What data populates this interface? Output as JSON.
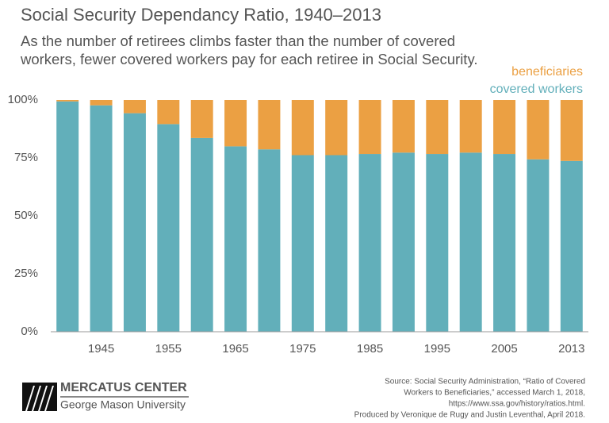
{
  "chart_data": {
    "type": "stacked_bar",
    "title": "Social Security Dependancy Ratio, 1940–2013",
    "subtitle": [
      "As the number of retirees climbs faster than the number of covered",
      "workers, fewer covered workers pay for each retiree in Social Security."
    ],
    "categories": [
      null,
      "1945",
      null,
      "1955",
      null,
      "1965",
      null,
      "1975",
      null,
      "1985",
      null,
      "1995",
      null,
      "2005",
      null,
      "2013"
    ],
    "series": [
      {
        "name": "covered workers",
        "color": "#62afba",
        "values": [
          99.4,
          97.7,
          94.3,
          89.6,
          83.6,
          80.0,
          78.7,
          76.2,
          76.2,
          76.7,
          77.3,
          76.7,
          77.3,
          76.7,
          74.4,
          73.7
        ]
      },
      {
        "name": "beneficiaries",
        "color": "#eba043",
        "values": [
          0.6,
          2.3,
          5.7,
          10.4,
          16.4,
          20.0,
          21.3,
          23.8,
          23.8,
          23.3,
          22.7,
          23.3,
          22.7,
          23.3,
          25.6,
          26.3
        ]
      }
    ],
    "ylim": [
      0,
      100
    ],
    "yticks": [
      {
        "value": 0,
        "label": "0%"
      },
      {
        "value": 25,
        "label": "25%"
      },
      {
        "value": 50,
        "label": "50%"
      },
      {
        "value": 75,
        "label": "75%"
      },
      {
        "value": 100,
        "label": "100%"
      }
    ],
    "grid": false,
    "legend": "top-right"
  },
  "footer": {
    "org": "MERCATUS CENTER",
    "university": "George Mason University",
    "source": [
      "Source: Social Security Administration, “Ratio of Covered",
      "Workers to Beneficiaries,” accessed March 1, 2018,",
      "https://www.ssa.gov/history/ratios.html.",
      "Produced by Veronique de Rugy and Justin Leventhal, April 2018."
    ]
  }
}
